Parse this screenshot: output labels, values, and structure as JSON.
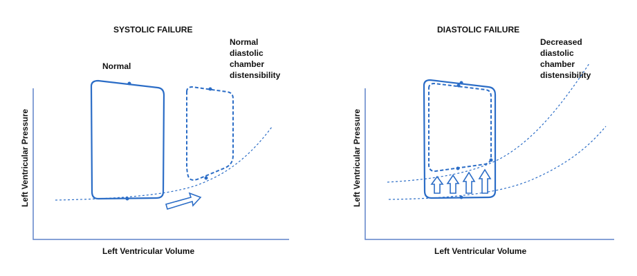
{
  "left_panel": {
    "title": "SYSTOLIC FAILURE",
    "label_normal": "Normal",
    "label_right": [
      "Normal",
      "diastolic",
      "chamber",
      "distensibility"
    ],
    "ylabel": "Left Ventricular Pressure",
    "xlabel": "Left Ventricular Volume"
  },
  "right_panel": {
    "title": "DIASTOLIC FAILURE",
    "label_right": [
      "Decreased",
      "diastolic",
      "chamber",
      "distensibility"
    ],
    "ylabel": "Left Ventricular Pressure",
    "xlabel": "Left Ventricular Volume"
  },
  "colors": {
    "loop": "#2a6cc6",
    "axis": "#5f82c9"
  }
}
